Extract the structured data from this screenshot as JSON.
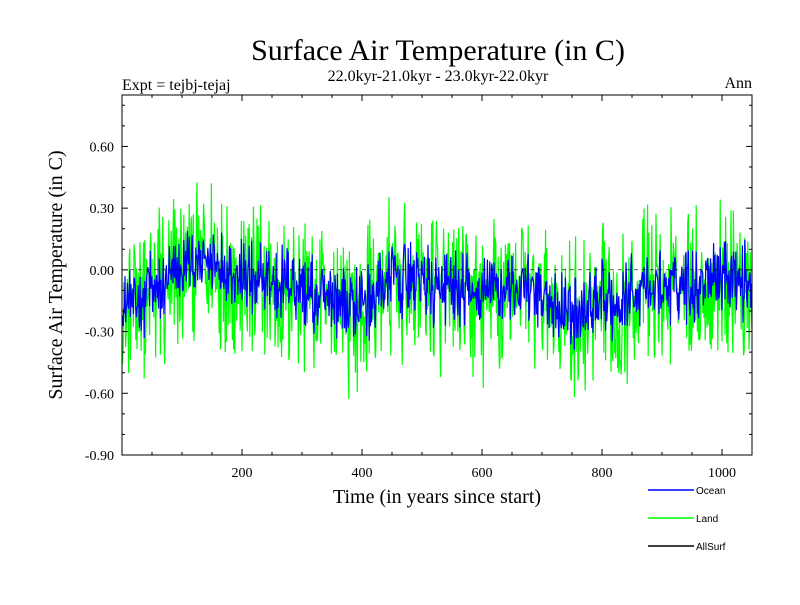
{
  "chart_data": {
    "type": "line",
    "title": "Surface Air Temperature (in C)",
    "subtitle": "22.0kyr-21.0kyr - 23.0kyr-22.0kyr",
    "left_label": "Expt = tejbj-tejaj",
    "right_label": "Ann",
    "xlabel": "Time (in years since start)",
    "ylabel": "Surface Air Temperature (in C)",
    "xlim": [
      0,
      1050
    ],
    "ylim": [
      -0.9,
      0.85
    ],
    "xticks": [
      200,
      400,
      600,
      800,
      1000
    ],
    "xtick_labels": [
      "200",
      "400",
      "600",
      "800",
      "1000"
    ],
    "yticks": [
      -0.9,
      -0.6,
      -0.3,
      0.0,
      0.3,
      0.6
    ],
    "ytick_labels": [
      "-0.90",
      "-0.60",
      "-0.30",
      "0.00",
      "0.30",
      "0.60"
    ],
    "x_start": 1,
    "x_end": 1050,
    "series": [
      {
        "name": "Land",
        "color": "#00ff00",
        "noise_amplitude": 0.35,
        "anchors_x": [
          0,
          50,
          100,
          150,
          200,
          250,
          300,
          350,
          400,
          450,
          500,
          550,
          600,
          650,
          700,
          750,
          800,
          850,
          900,
          950,
          1000,
          1050
        ],
        "anchors_y": [
          -0.22,
          -0.12,
          -0.02,
          0.05,
          -0.05,
          -0.08,
          -0.12,
          -0.16,
          -0.2,
          -0.03,
          -0.08,
          -0.12,
          -0.14,
          -0.1,
          -0.14,
          -0.26,
          -0.2,
          -0.12,
          -0.1,
          -0.06,
          -0.04,
          -0.08
        ]
      },
      {
        "name": "Ocean",
        "color": "#0000ff",
        "noise_amplitude": 0.17,
        "anchors_x": [
          0,
          50,
          100,
          150,
          200,
          250,
          300,
          350,
          400,
          450,
          500,
          550,
          600,
          650,
          700,
          750,
          800,
          850,
          900,
          950,
          1000,
          1050
        ],
        "anchors_y": [
          -0.18,
          -0.1,
          0.0,
          0.06,
          -0.04,
          -0.06,
          -0.1,
          -0.14,
          -0.18,
          -0.02,
          -0.06,
          -0.1,
          -0.12,
          -0.08,
          -0.12,
          -0.22,
          -0.16,
          -0.1,
          -0.08,
          -0.05,
          -0.02,
          -0.06
        ]
      },
      {
        "name": "AllSurf",
        "color": "#000000",
        "noise_amplitude": 0.0,
        "anchors_x": [],
        "anchors_y": []
      }
    ],
    "legend": [
      {
        "name": "Ocean",
        "color": "#0000ff"
      },
      {
        "name": "Land",
        "color": "#00ff00"
      },
      {
        "name": "AllSurf",
        "color": "#000000"
      }
    ],
    "legend_position": "bottom-right"
  }
}
